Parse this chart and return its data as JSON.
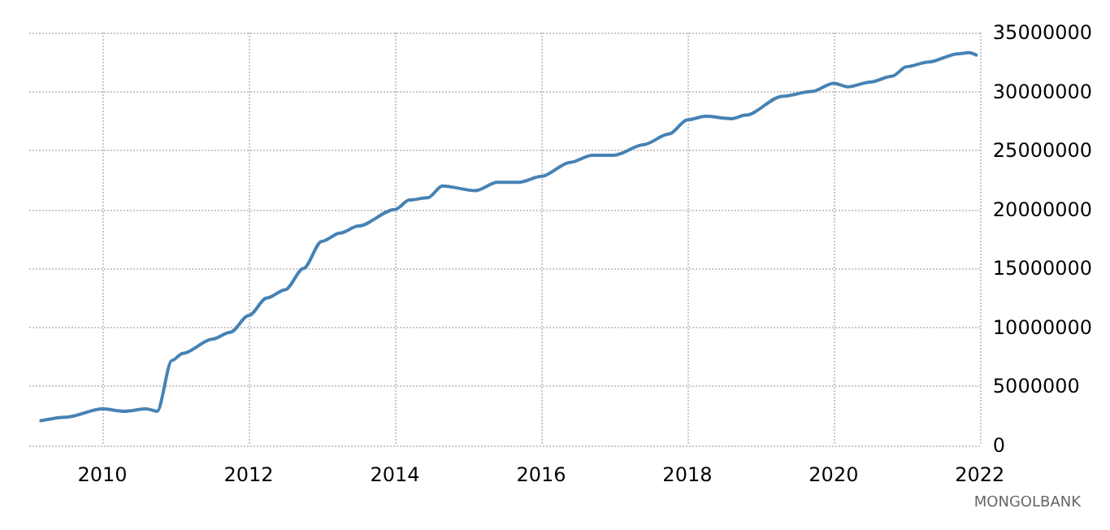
{
  "chart_data": {
    "type": "line",
    "x": [
      2009.16,
      2009.5,
      2010.0,
      2010.3,
      2010.6,
      2010.75,
      2010.95,
      2011.1,
      2011.5,
      2011.75,
      2012.0,
      2012.25,
      2012.5,
      2012.75,
      2013.0,
      2013.25,
      2013.5,
      2014.0,
      2014.2,
      2014.45,
      2014.65,
      2015.1,
      2015.4,
      2015.7,
      2016.0,
      2016.4,
      2016.7,
      2017.0,
      2017.4,
      2017.75,
      2018.0,
      2018.25,
      2018.6,
      2018.8,
      2019.3,
      2019.7,
      2020.0,
      2020.2,
      2020.5,
      2020.8,
      2021.0,
      2021.3,
      2021.7,
      2021.85,
      2021.95
    ],
    "series": [
      {
        "color": "#4682b4",
        "values": [
          2100000,
          2400000,
          3100000,
          2900000,
          3100000,
          2900000,
          7200000,
          7800000,
          9000000,
          9600000,
          11000000,
          12500000,
          13200000,
          15000000,
          17300000,
          18000000,
          18600000,
          20000000,
          20800000,
          21000000,
          22000000,
          21600000,
          22300000,
          22300000,
          22800000,
          24000000,
          24600000,
          24600000,
          25500000,
          26400000,
          27600000,
          27900000,
          27700000,
          28000000,
          29600000,
          30000000,
          30700000,
          30400000,
          30800000,
          31300000,
          32100000,
          32500000,
          33200000,
          33300000,
          33100000
        ]
      }
    ],
    "xlim": [
      2009,
      2022
    ],
    "xticks": [
      2010,
      2012,
      2014,
      2016,
      2018,
      2020,
      2022
    ],
    "ylim": [
      0,
      35000000
    ],
    "yticks": [
      0,
      5000000,
      10000000,
      15000000,
      20000000,
      25000000,
      30000000,
      35000000
    ],
    "grid": true,
    "marker": "none",
    "line_style": "solid",
    "annotations": [
      "MONGOLBANK"
    ]
  }
}
